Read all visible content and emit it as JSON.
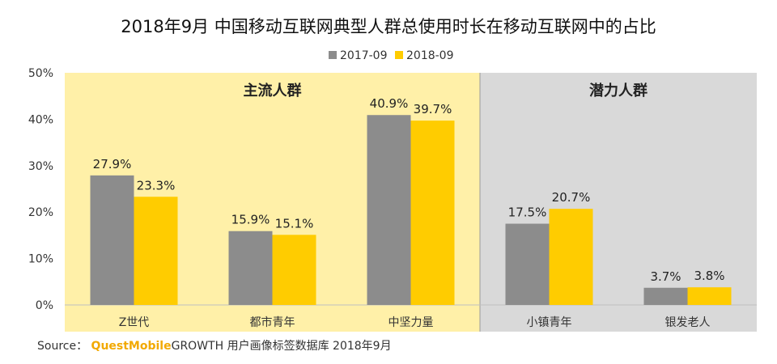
{
  "chart_data": {
    "type": "bar",
    "title": "2018年9月 中国移动互联网典型人群总使用时长在移动互联网中的占比",
    "categories": [
      "Z世代",
      "都市青年",
      "中坚力量",
      "小镇青年",
      "银发老人"
    ],
    "series": [
      {
        "name": "2017-09",
        "values": [
          27.9,
          15.9,
          40.9,
          17.5,
          3.7
        ],
        "labels": [
          "27.9%",
          "15.9%",
          "40.9%",
          "17.5%",
          "3.7%"
        ],
        "color": "#8c8c8c"
      },
      {
        "name": "2018-09",
        "values": [
          23.3,
          15.1,
          39.7,
          20.7,
          3.8
        ],
        "labels": [
          "23.3%",
          "15.1%",
          "39.7%",
          "20.7%",
          "3.8%"
        ],
        "color": "#ffcc00"
      }
    ],
    "ylim": [
      0,
      50
    ],
    "yticks": [
      "0%",
      "10%",
      "20%",
      "30%",
      "40%",
      "50%"
    ],
    "legend_position": "top-center",
    "groups": [
      {
        "label": "主流人群",
        "color": "#fff0a8",
        "categories": [
          "Z世代",
          "都市青年",
          "中坚力量"
        ]
      },
      {
        "label": "潜力人群",
        "color": "#d9d9d9",
        "categories": [
          "小镇青年",
          "银发老人"
        ]
      }
    ]
  },
  "source": {
    "prefix": "Source：",
    "brand": "QuestMobile",
    "brand_growth": "GROWTH",
    "text": "用户画像标签数据库 2018年9月"
  }
}
